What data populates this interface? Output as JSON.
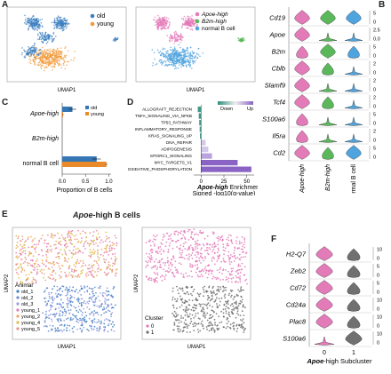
{
  "panels": {
    "A": {
      "letter": "A",
      "umap_left": {
        "xlabel": "UMAP1",
        "legend": [
          {
            "label": "old",
            "color": "#3b7fc0"
          },
          {
            "label": "young",
            "color": "#f29a3a"
          }
        ]
      },
      "umap_right": {
        "xlabel": "UMAP1",
        "legend": [
          {
            "label": "Apoe-high",
            "color": "#e37bb8"
          },
          {
            "label": "B2m-high",
            "color": "#5bb85a"
          },
          {
            "label": "normal B cell",
            "color": "#4fa3de"
          }
        ]
      }
    },
    "B": {
      "letter": "B",
      "genes": [
        "Cd19",
        "Apoe",
        "B2m",
        "Cblb",
        "Slamf9",
        "Tcf4",
        "S100a6",
        "Il5ra",
        "Cd2"
      ],
      "groups": [
        "Apoe-high",
        "B2m-high",
        "normal B cell"
      ],
      "group_colors": [
        "#e37bb8",
        "#5bb85a",
        "#4fa3de"
      ],
      "scales": [
        [
          "5",
          "0"
        ],
        [
          "2.5",
          "0.0"
        ],
        [
          "5",
          "0"
        ],
        [
          "2",
          "0"
        ],
        [
          "2",
          "0"
        ],
        [
          "2",
          "0"
        ],
        [
          "5",
          "0"
        ],
        [
          "2",
          "0"
        ],
        [
          "5",
          "0"
        ]
      ]
    },
    "C": {
      "letter": "C",
      "xlabel": "Proportion of B cells",
      "categories": [
        "Apoe-high",
        "B2m-high",
        "normal B cell"
      ],
      "legend": [
        {
          "label": "old",
          "color": "#3576b5"
        },
        {
          "label": "young",
          "color": "#e98a2b"
        }
      ],
      "xticks": [
        "0.0",
        "0.5",
        "1.0"
      ],
      "chart_data": {
        "type": "bar",
        "categories": [
          "Apoe-high",
          "B2m-high",
          "normal B cell"
        ],
        "series": [
          {
            "name": "old",
            "values": [
              0.22,
              0.0,
              0.74
            ],
            "errors": [
              0.08,
              0.0,
              0.09
            ]
          },
          {
            "name": "young",
            "values": [
              0.02,
              0.0,
              0.95
            ],
            "errors": [
              0.01,
              0.0,
              0.02
            ]
          }
        ],
        "xlabel": "Proportion of B cells",
        "xlim": [
          0,
          1.05
        ]
      }
    },
    "D": {
      "letter": "D",
      "xlabel_line1_italic": "Apoe-high",
      "xlabel_line1_rest": " Enrichment",
      "xlabel_line2": "Signed -log10(q-value)",
      "colorbar_down": "Down",
      "colorbar_up": "Up",
      "xticks": [
        "0",
        "25",
        "50"
      ],
      "chart_data": {
        "type": "bar",
        "categories": [
          "ALLOGRAFT_REJECTION",
          "TNFA_SIGNALING_VIA_NFKB",
          "TP53_PATHWAY",
          "INFLAMMATORY_RESPONSE",
          "KRAS_SIGNALING_UP",
          "DNA_REPAIR",
          "ADIPOGENESIS",
          "MTORC1_SIGNALING",
          "MYC_TARGETS_V1",
          "OXIDATIVE_PHOSPHORYLATION"
        ],
        "values": [
          -3.5,
          -2.5,
          -2,
          -1.5,
          -1.2,
          5,
          8,
          12,
          40,
          55
        ],
        "xlim": [
          -8,
          58
        ]
      }
    },
    "E": {
      "letter": "E",
      "title_italic": "Apoe",
      "title_rest": "-high B cells",
      "umap_left": {
        "xlabel": "UMAP1",
        "ylabel": "UMAP2",
        "legend_title": "Animal",
        "legend": [
          {
            "label": "old_1",
            "color": "#3b7fc0"
          },
          {
            "label": "old_2",
            "color": "#6a8cd6"
          },
          {
            "label": "old_3",
            "color": "#9a9ae0"
          },
          {
            "label": "young_1",
            "color": "#e37bb8"
          },
          {
            "label": "young_2",
            "color": "#f2a35a"
          },
          {
            "label": "young_4",
            "color": "#d8c040"
          },
          {
            "label": "young_5",
            "color": "#e89090"
          }
        ]
      },
      "umap_right": {
        "xlabel": "UMAP1",
        "ylabel": "UMAP2",
        "legend_title": "Cluster",
        "legend": [
          {
            "label": "0",
            "color": "#e37bb8"
          },
          {
            "label": "1",
            "color": "#707070"
          }
        ]
      }
    },
    "F": {
      "letter": "F",
      "genes": [
        "H2-Q7",
        "Zeb2",
        "Cd72",
        "Cd24a",
        "Plac8",
        "S100a6"
      ],
      "groups": [
        "0",
        "1"
      ],
      "group_colors": [
        "#e37bb8",
        "#707070"
      ],
      "xlabel_italic": "Apoe",
      "xlabel_rest": "-high Subcluster",
      "scales": [
        [
          "10",
          "0"
        ],
        [
          "5",
          "0"
        ],
        [
          "5",
          "0"
        ],
        [
          "10",
          "0"
        ],
        [
          "10",
          "0"
        ],
        [
          "10",
          "0"
        ]
      ]
    }
  }
}
